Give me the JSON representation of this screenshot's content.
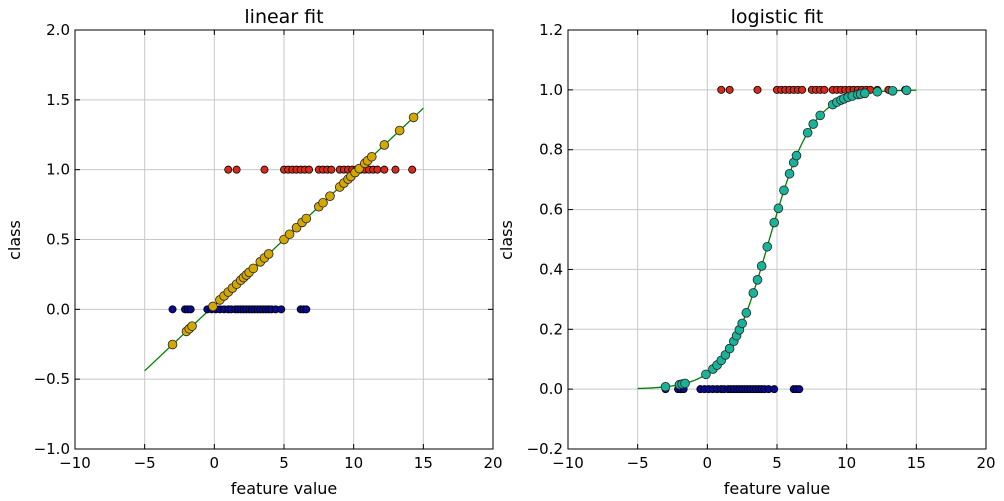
{
  "colors": {
    "fit_line": "#008000",
    "class0": "#0a0a8c",
    "class1": "#d62a1a",
    "linear_pred": "#d4a800",
    "logistic_pred": "#19b39a",
    "grid": "#c8c8c8"
  },
  "chart_data": [
    {
      "id": "linear",
      "type": "scatter",
      "title": "linear fit",
      "xlabel": "feature value",
      "ylabel": "class",
      "xlim": [
        -10,
        20
      ],
      "ylim": [
        -1.0,
        2.0
      ],
      "xticks": [
        -10,
        -5,
        0,
        5,
        10,
        15,
        20
      ],
      "xtick_labels": [
        "−10",
        "−5",
        "0",
        "5",
        "10",
        "15",
        "20"
      ],
      "yticks": [
        -1.0,
        -0.5,
        0.0,
        0.5,
        1.0,
        1.5,
        2.0
      ],
      "ytick_labels": [
        "−1.0",
        "−0.5",
        "0.0",
        "0.5",
        "1.0",
        "1.5",
        "2.0"
      ],
      "grid": true,
      "fit_line": {
        "x": [
          -5,
          15
        ],
        "y": [
          -0.44,
          1.44
        ]
      },
      "class0_x": [
        -3.0,
        -2.1,
        -1.9,
        -1.7,
        -0.5,
        -0.2,
        0.1,
        0.4,
        0.7,
        1.0,
        1.2,
        1.5,
        1.7,
        1.9,
        2.1,
        2.3,
        2.5,
        2.7,
        2.9,
        3.1,
        3.3,
        3.5,
        3.7,
        3.9,
        4.1,
        4.4,
        4.8,
        6.2,
        6.4,
        6.6
      ],
      "class0_y": 0.0,
      "class1_x": [
        1.0,
        1.6,
        3.6,
        5.0,
        5.3,
        5.6,
        5.9,
        6.2,
        6.5,
        6.8,
        7.5,
        7.8,
        8.1,
        8.4,
        9.0,
        9.3,
        9.6,
        9.9,
        10.2,
        10.5,
        10.8,
        11.1,
        11.4,
        11.7,
        12.2,
        13.0,
        14.2
      ],
      "class1_y": 1.0,
      "pred_x": [
        -3.0,
        -2.0,
        -1.8,
        -1.6,
        -0.1,
        0.4,
        0.7,
        1.0,
        1.3,
        1.6,
        1.9,
        2.1,
        2.3,
        2.5,
        2.8,
        3.3,
        3.6,
        3.9,
        5.0,
        5.4,
        5.9,
        6.3,
        6.6,
        7.5,
        7.8,
        8.3,
        9.0,
        9.3,
        9.6,
        9.8,
        10.1,
        10.4,
        10.8,
        11.0,
        11.3,
        12.2,
        13.3,
        14.3
      ],
      "pred_slope": 0.094,
      "pred_intercept": 0.03
    },
    {
      "id": "logistic",
      "type": "scatter",
      "title": "logistic fit",
      "xlabel": "feature value",
      "ylabel": "class",
      "xlim": [
        -10,
        20
      ],
      "ylim": [
        -0.2,
        1.2
      ],
      "xticks": [
        -10,
        -5,
        0,
        5,
        10,
        15,
        20
      ],
      "xtick_labels": [
        "−10",
        "−5",
        "0",
        "5",
        "10",
        "15",
        "20"
      ],
      "yticks": [
        -0.2,
        0.0,
        0.2,
        0.4,
        0.6,
        0.8,
        1.0,
        1.2
      ],
      "ytick_labels": [
        "−0.2",
        "0.0",
        "0.2",
        "0.4",
        "0.6",
        "0.8",
        "1.0",
        "1.2"
      ],
      "grid": true,
      "fit_line": {
        "x_start": -5,
        "x_end": 15,
        "k": 0.65,
        "x0": 4.45
      },
      "class0_x": [
        -3.0,
        -2.1,
        -1.9,
        -1.7,
        -0.5,
        -0.2,
        0.1,
        0.4,
        0.7,
        1.0,
        1.2,
        1.5,
        1.7,
        1.9,
        2.1,
        2.3,
        2.5,
        2.7,
        2.9,
        3.1,
        3.3,
        3.5,
        3.7,
        3.9,
        4.1,
        4.4,
        4.8,
        6.2,
        6.4,
        6.6
      ],
      "class0_y": 0.0,
      "class1_x": [
        1.0,
        1.6,
        3.6,
        5.0,
        5.3,
        5.6,
        5.9,
        6.2,
        6.5,
        6.8,
        7.5,
        7.8,
        8.1,
        8.4,
        9.0,
        9.3,
        9.6,
        9.9,
        10.2,
        10.5,
        10.8,
        11.1,
        11.4,
        11.7,
        12.2,
        13.0,
        14.2
      ],
      "class1_y": 1.0,
      "pred_x": [
        -3.0,
        -2.0,
        -1.8,
        -1.6,
        -0.1,
        0.4,
        0.7,
        1.0,
        1.3,
        1.6,
        1.9,
        2.1,
        2.3,
        2.5,
        2.8,
        3.3,
        3.6,
        3.9,
        4.3,
        4.8,
        5.1,
        5.5,
        5.9,
        6.2,
        6.4,
        7.2,
        7.6,
        8.1,
        9.0,
        9.3,
        9.6,
        9.8,
        10.1,
        10.4,
        10.8,
        11.0,
        11.3,
        12.2,
        13.3,
        14.3
      ]
    }
  ]
}
